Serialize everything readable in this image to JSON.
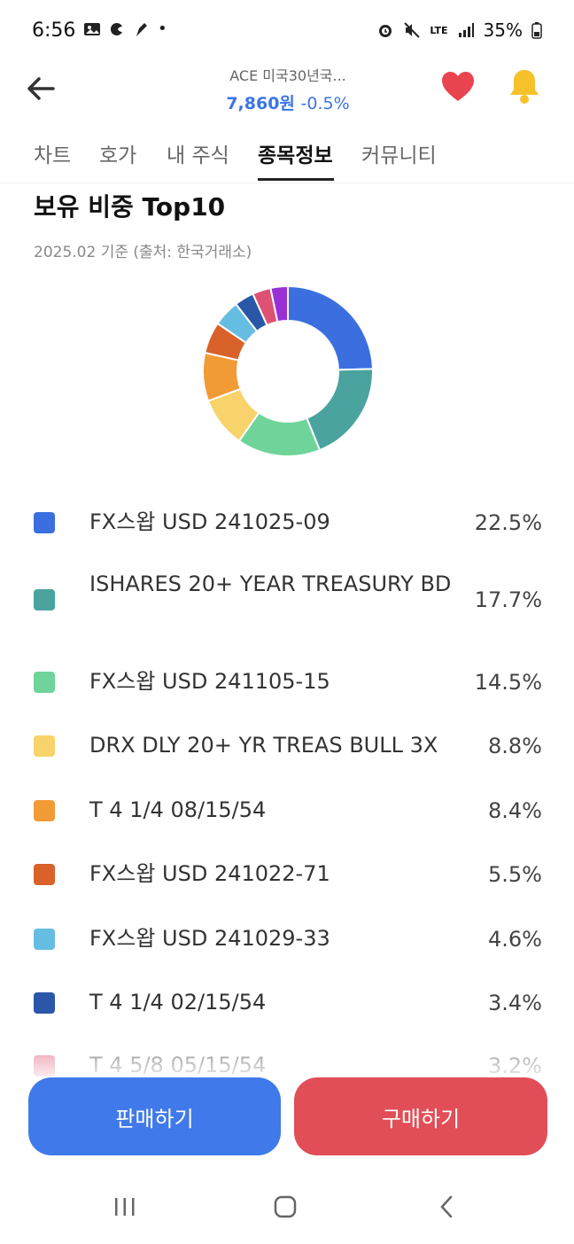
{
  "status_bar": {
    "time": "6:56",
    "battery": "35%",
    "network": "LTE"
  },
  "header": {
    "title": "ACE 미국30년국...",
    "price": "7,860원",
    "change": "-0.5%"
  },
  "tabs": [
    "차트",
    "호가",
    "내 주식",
    "종목정보",
    "커뮤니티"
  ],
  "active_tab": "종목정보",
  "section": {
    "title": "보유 비중 Top10",
    "subtitle": "2025.02 기준 (출처: 한국거래소)"
  },
  "holdings": [
    {
      "name": "FX스왑 USD 241025-09",
      "pct": "22.5%",
      "color": "#3b6fe0"
    },
    {
      "name": "ISHARES 20+ YEAR TREASURY BD",
      "pct": "17.7%",
      "color": "#4aa39e"
    },
    {
      "name": "FX스왑 USD 241105-15",
      "pct": "14.5%",
      "color": "#6fd49a"
    },
    {
      "name": "DRX DLY 20+ YR TREAS BULL 3X",
      "pct": "8.8%",
      "color": "#f8d36b"
    },
    {
      "name": "T 4 1/4 08/15/54",
      "pct": "8.4%",
      "color": "#f19b37"
    },
    {
      "name": "FX스왑 USD 241022-71",
      "pct": "5.5%",
      "color": "#d9612a"
    },
    {
      "name": "FX스왑 USD 241029-33",
      "pct": "4.6%",
      "color": "#66bde2"
    },
    {
      "name": "T 4 1/4 02/15/54",
      "pct": "3.4%",
      "color": "#2a57a8"
    },
    {
      "name": "T 4 5/8 05/15/54",
      "pct": "3.2%",
      "color": "#dd5272"
    }
  ],
  "chart_data": {
    "type": "pie",
    "categories": [
      "FX스왑 USD 241025-09",
      "ISHARES 20+ YEAR TREASURY BD",
      "FX스왑 USD 241105-15",
      "DRX DLY 20+ YR TREAS BULL 3X",
      "T 4 1/4 08/15/54",
      "FX스왑 USD 241022-71",
      "FX스왑 USD 241029-33",
      "T 4 1/4 02/15/54",
      "T 4 5/8 05/15/54",
      ""
    ],
    "values": [
      22.5,
      17.7,
      14.5,
      8.8,
      8.4,
      5.5,
      4.6,
      3.4,
      3.2,
      3.0
    ],
    "colors": [
      "#3b6fe0",
      "#4aa39e",
      "#6fd49a",
      "#f8d36b",
      "#f19b37",
      "#d9612a",
      "#66bde2",
      "#2a57a8",
      "#dd5272",
      "#9b2fd6"
    ]
  },
  "buttons": {
    "sell": "판매하기",
    "buy": "구매하기"
  },
  "colors": {
    "accent_blue": "#4079e9",
    "accent_red": "#e14e57",
    "price_blue": "#3b74e6"
  }
}
